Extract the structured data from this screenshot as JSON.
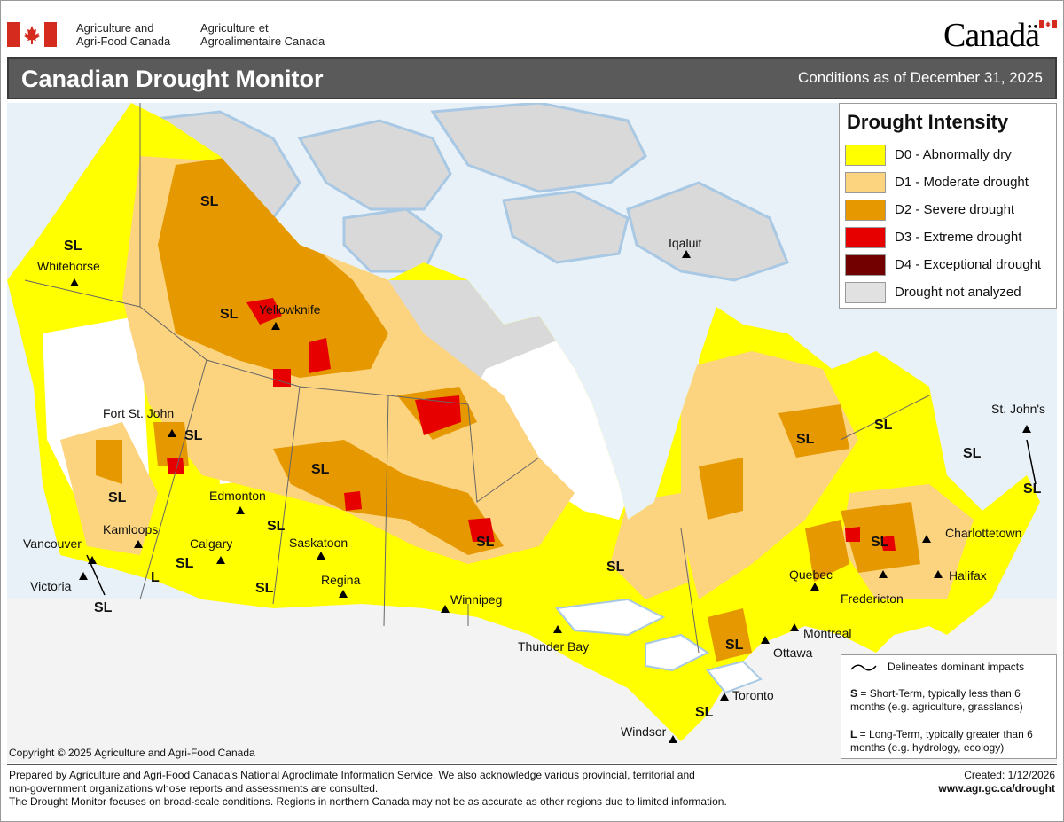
{
  "header": {
    "government_en": [
      "Agriculture and",
      "Agri-Food Canada"
    ],
    "government_fr": [
      "Agriculture et",
      "Agroalimentaire Canada"
    ],
    "wordmark": "Canadä",
    "title": "Canadian Drought Monitor",
    "conditions": "Conditions as of December 31, 2025"
  },
  "legend": {
    "title": "Drought Intensity",
    "items": [
      {
        "label": "D0 - Abnormally dry",
        "color": "#ffff00"
      },
      {
        "label": "D1 - Moderate drought",
        "color": "#fcd37f"
      },
      {
        "label": "D2 - Severe drought",
        "color": "#e69800"
      },
      {
        "label": "D3 - Extreme drought",
        "color": "#e60000"
      },
      {
        "label": "D4 - Exceptional drought",
        "color": "#730000"
      },
      {
        "label": "Drought not analyzed",
        "color": "#e1e1e1"
      }
    ]
  },
  "impacts": {
    "line_text": "Delineates dominant impacts",
    "short_term_key": "S",
    "short_term_text": " = Short-Term, typically less than 6 months (e.g. agriculture, grasslands)",
    "long_term_key": "L",
    "long_term_text": " = Long-Term, typically greater  than 6 months (e.g. hydrology, ecology)"
  },
  "map": {
    "cities": [
      "Whitehorse",
      "Yellowknife",
      "Iqaluit",
      "Fort St. John",
      "Edmonton",
      "Kamloops",
      "Calgary",
      "Saskatoon",
      "Vancouver",
      "Victoria",
      "Regina",
      "Winnipeg",
      "Thunder Bay",
      "Quebec",
      "Montreal",
      "Ottawa",
      "Fredericton",
      "Charlottetown",
      "Halifax",
      "St. John's",
      "Toronto",
      "Windsor"
    ],
    "impact_labels": [
      "SL",
      "SL",
      "SL",
      "SL",
      "SL",
      "SL",
      "SL",
      "SL",
      "SL",
      "SL",
      "SL",
      "SL",
      "SL",
      "SL",
      "SL",
      "SL",
      "SL",
      "SL",
      "L",
      "SL"
    ]
  },
  "footer": {
    "copyright": "Copyright © 2025 Agriculture and Agri-Food Canada",
    "lines": [
      "Prepared by Agriculture and Agri-Food Canada's National Agroclimate Information Service.  We also acknowledge various provincial, territorial and",
      "non-government organizations whose reports and assessments are consulted.",
      "The Drought Monitor focuses on broad-scale conditions.  Regions in northern Canada may not be as accurate as other regions due to limited information."
    ],
    "created": "Created: 1/12/2026",
    "url": "www.agr.gc.ca/drought"
  }
}
